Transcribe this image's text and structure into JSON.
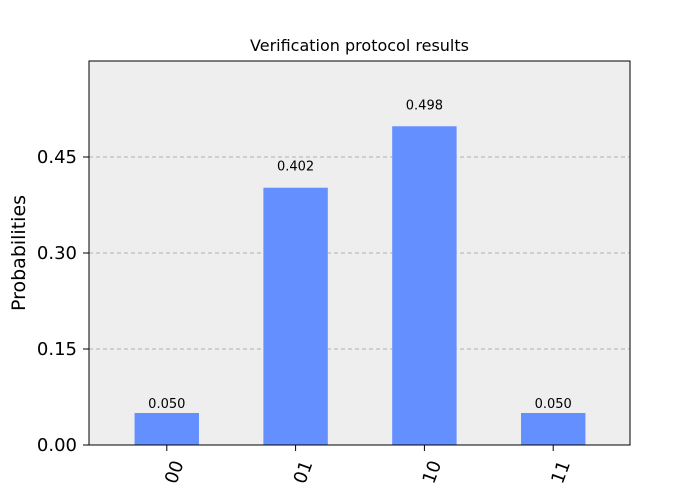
{
  "chart_data": {
    "type": "bar",
    "title": "Verification protocol results",
    "xlabel": "",
    "ylabel": "Probabilities",
    "categories": [
      "00",
      "01",
      "10",
      "11"
    ],
    "values": [
      0.05,
      0.402,
      0.498,
      0.05
    ],
    "value_labels": [
      "0.050",
      "0.402",
      "0.498",
      "0.050"
    ],
    "ylim": [
      0,
      0.6
    ],
    "yticks": [
      0.0,
      0.15,
      0.3,
      0.45
    ],
    "ytick_labels": [
      "0.00",
      "0.15",
      "0.30",
      "0.45"
    ],
    "grid": true,
    "colors": {
      "bar": "#648fff",
      "plot_background": "#eeeeee",
      "grid": "#b0b0b0",
      "axis": "#000000"
    }
  }
}
